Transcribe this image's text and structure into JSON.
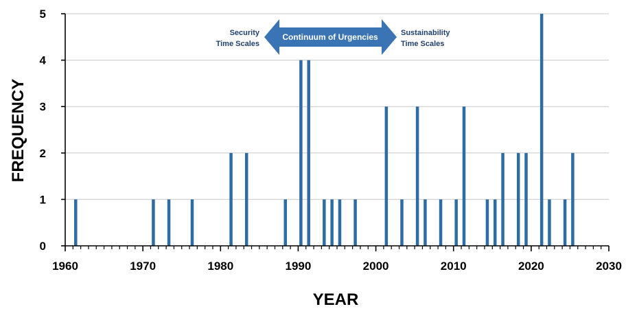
{
  "chart_data": {
    "type": "bar",
    "xlabel": "YEAR",
    "ylabel": "FREQUENCY",
    "xlim": [
      1960,
      2030
    ],
    "ylim": [
      0,
      5
    ],
    "xticks": [
      "1960",
      "1970",
      "1980",
      "1990",
      "2000",
      "2010",
      "2020",
      "2030"
    ],
    "yticks": [
      "0",
      "1",
      "2",
      "3",
      "4",
      "5"
    ],
    "grid": true,
    "bar_color": "#2e6ca4",
    "arrow_color": "#3a74b4",
    "x": [
      1961,
      1971,
      1973,
      1976,
      1981,
      1983,
      1988,
      1990,
      1991,
      1993,
      1994,
      1995,
      1997,
      2001,
      2003,
      2005,
      2006,
      2008,
      2010,
      2011,
      2014,
      2015,
      2016,
      2018,
      2019,
      2021,
      2022,
      2024,
      2025
    ],
    "values": [
      1,
      1,
      1,
      1,
      2,
      2,
      1,
      4,
      4,
      1,
      1,
      1,
      1,
      3,
      1,
      3,
      1,
      1,
      1,
      3,
      1,
      1,
      2,
      2,
      2,
      5,
      1,
      1,
      2
    ],
    "annotations": {
      "left_line1": "Security",
      "left_line2": "Time Scales",
      "center": "Continuum of Urgencies",
      "right_line1": "Sustainability",
      "right_line2": "Time Scales"
    }
  }
}
